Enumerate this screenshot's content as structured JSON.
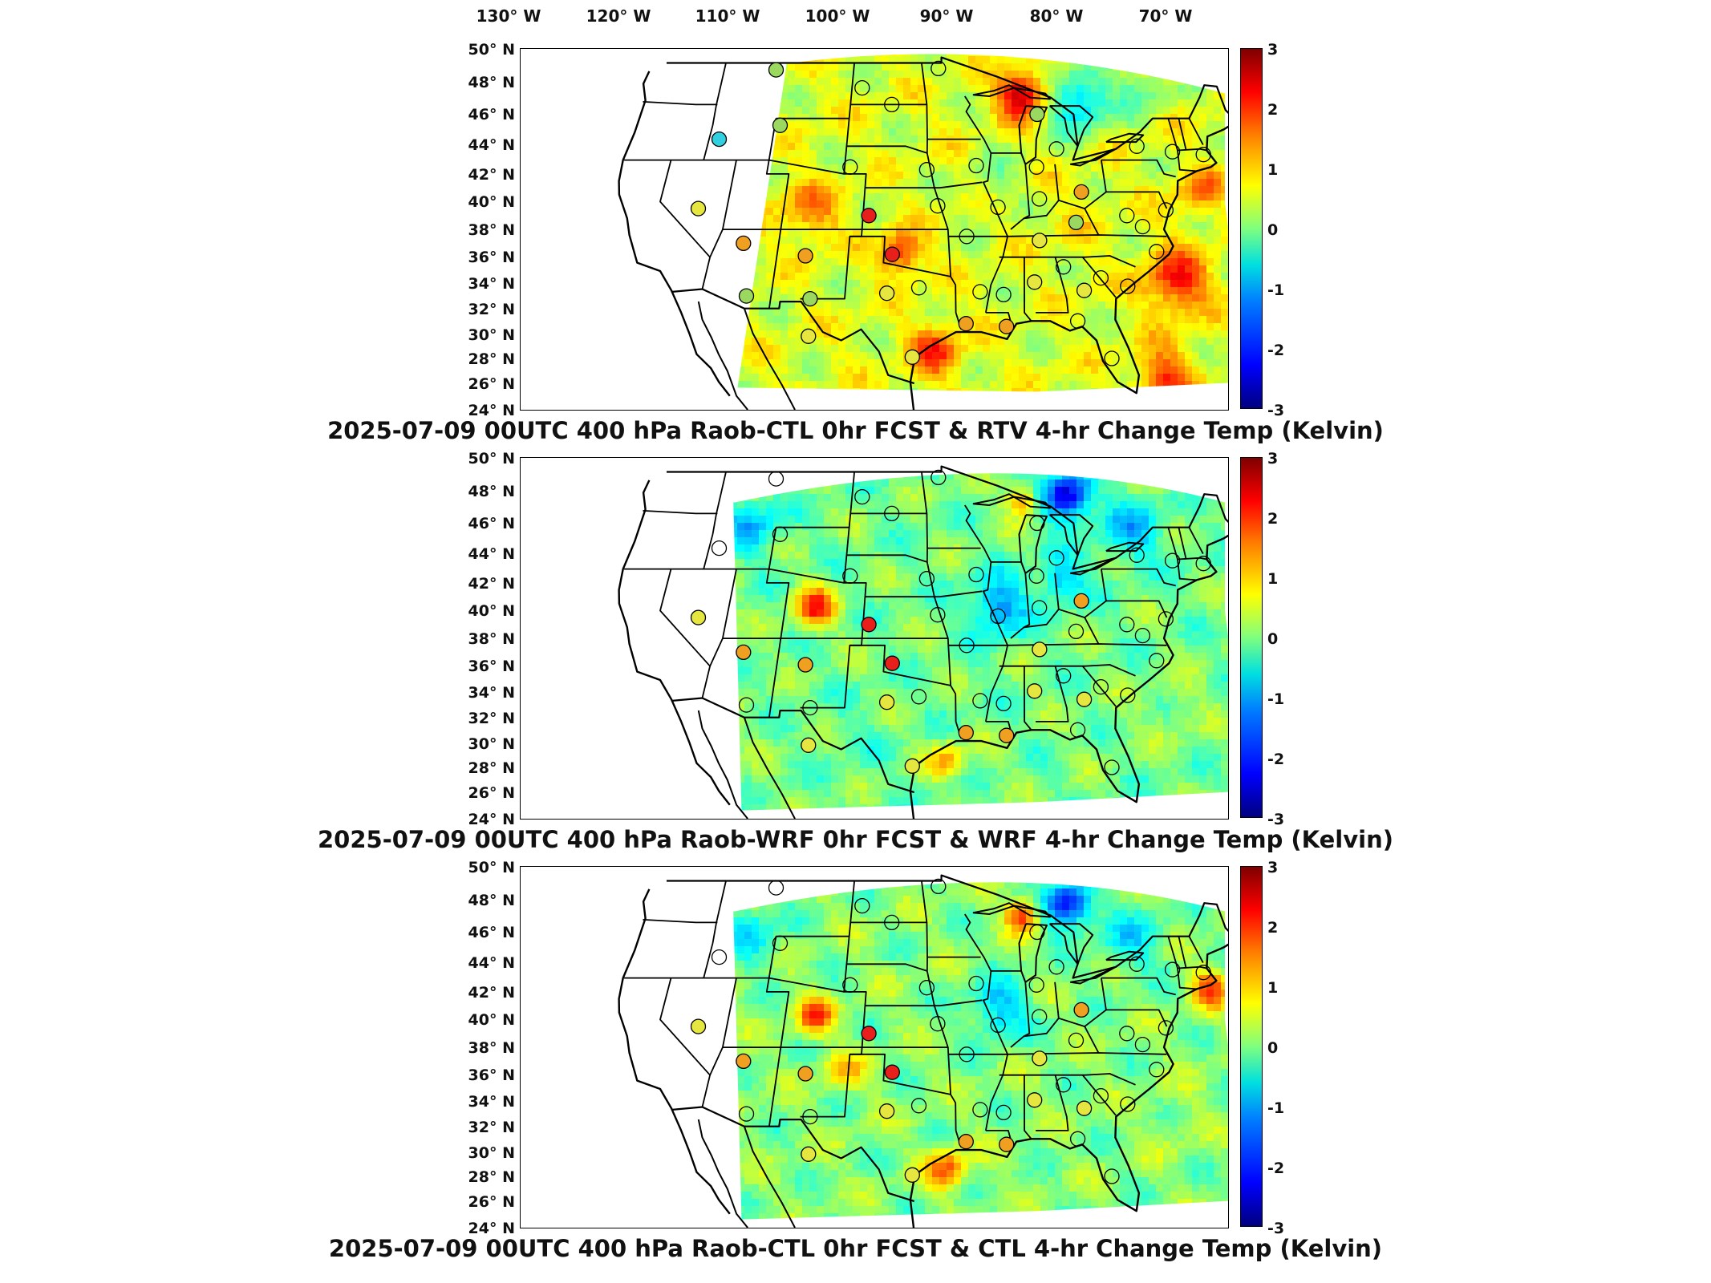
{
  "lon_labels": [
    "130° W",
    "120° W",
    "110° W",
    "100° W",
    "90° W",
    "80° W",
    "70° W"
  ],
  "lat_labels": [
    "50° N",
    "48° N",
    "46° N",
    "44° N",
    "42° N",
    "40° N",
    "38° N",
    "36° N",
    "34° N",
    "32° N",
    "30° N",
    "28° N",
    "26° N",
    "24° N"
  ],
  "colorbar": {
    "ticks": [
      "3",
      "2",
      "1",
      "0",
      "-1",
      "-2",
      "-3"
    ],
    "range": [
      -3,
      3
    ],
    "colormap": "jet"
  },
  "panels": [
    {
      "title": "2025-07-09 00UTC 400 hPa Raob-CTL 0hr FCST & RTV 4-hr Change Temp (Kelvin)",
      "field": "rtv"
    },
    {
      "title": "2025-07-09 00UTC 400 hPa Raob-WRF 0hr FCST & WRF 4-hr Change Temp (Kelvin)",
      "field": "wrf"
    },
    {
      "title": "2025-07-09 00UTC 400 hPa Raob-CTL 0hr FCST & CTL 4-hr Change Temp (Kelvin)",
      "field": "ctl"
    }
  ],
  "station_fill_colors": {
    "red": "#e8201c",
    "orange": "#f0a020",
    "yellow": "#e6e640",
    "green": "#9bd860",
    "cyan": "#30d0e0"
  }
}
